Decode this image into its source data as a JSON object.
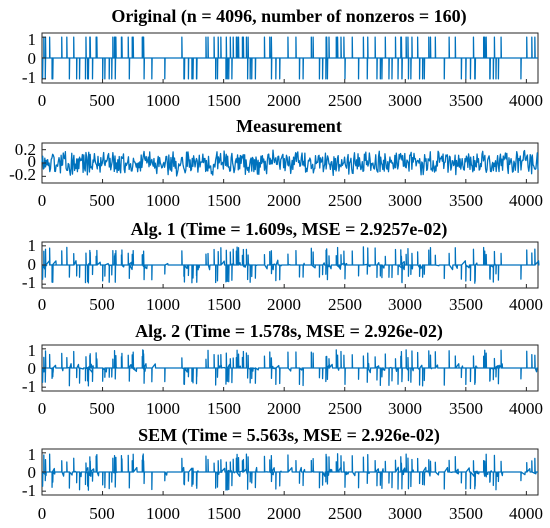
{
  "chart_data": [
    {
      "type": "line",
      "title": "Original (n = 4096, number of nonzeros = 160)",
      "xlim": [
        0,
        4096
      ],
      "ylim": [
        -1.2,
        1.2
      ],
      "xticks": [
        0,
        500,
        1000,
        1500,
        2000,
        2500,
        3000,
        3500,
        4000
      ],
      "xticklabels": [
        "0",
        "500",
        "1000",
        "1500",
        "2000",
        "2500",
        "3000",
        "3500",
        "4000"
      ],
      "yticks": [
        -1,
        0,
        1
      ],
      "yticklabels": [
        "-1",
        "0",
        "1"
      ],
      "series": [
        {
          "kind": "sparse_spikes",
          "n": 4096,
          "nonzeros": 160,
          "amplitude": 1
        }
      ]
    },
    {
      "type": "line",
      "title": "Measurement",
      "xlim": [
        0,
        4096
      ],
      "ylim": [
        -0.3,
        0.3
      ],
      "xticks": [
        0,
        500,
        1000,
        1500,
        2000,
        2500,
        3000,
        3500,
        4000
      ],
      "xticklabels": [
        "0",
        "500",
        "1000",
        "1500",
        "2000",
        "2500",
        "3000",
        "3500",
        "4000"
      ],
      "yticks": [
        -0.2,
        0,
        0.2
      ],
      "yticklabels": [
        "-0.2",
        "0",
        "0.2"
      ],
      "series": [
        {
          "kind": "dense_noise",
          "n": 4096,
          "amplitude": 0.2
        }
      ]
    },
    {
      "type": "line",
      "title": "Alg. 1 (Time = 1.609s, MSE = 2.9257e-02)",
      "xlim": [
        0,
        4096
      ],
      "ylim": [
        -1.2,
        1.2
      ],
      "xticks": [
        0,
        500,
        1000,
        1500,
        2000,
        2500,
        3000,
        3500,
        4000
      ],
      "xticklabels": [
        "0",
        "500",
        "1000",
        "1500",
        "2000",
        "2500",
        "3000",
        "3500",
        "4000"
      ],
      "yticks": [
        -1,
        0,
        1
      ],
      "yticklabels": [
        "-1",
        "0",
        "1"
      ],
      "series": [
        {
          "kind": "sparse_recovery",
          "n": 4096,
          "amplitude": 1
        }
      ]
    },
    {
      "type": "line",
      "title": "Alg. 2 (Time = 1.578s, MSE = 2.926e-02)",
      "xlim": [
        0,
        4096
      ],
      "ylim": [
        -1.2,
        1.2
      ],
      "xticks": [
        0,
        500,
        1000,
        1500,
        2000,
        2500,
        3000,
        3500,
        4000
      ],
      "xticklabels": [
        "0",
        "500",
        "1000",
        "1500",
        "2000",
        "2500",
        "3000",
        "3500",
        "4000"
      ],
      "yticks": [
        -1,
        0,
        1
      ],
      "yticklabels": [
        "-1",
        "0",
        "1"
      ],
      "series": [
        {
          "kind": "sparse_recovery",
          "n": 4096,
          "amplitude": 1
        }
      ]
    },
    {
      "type": "line",
      "title": "SEM (Time = 5.563s, MSE = 2.926e-02)",
      "xlim": [
        0,
        4096
      ],
      "ylim": [
        -1.2,
        1.2
      ],
      "xticks": [
        0,
        500,
        1000,
        1500,
        2000,
        2500,
        3000,
        3500,
        4000
      ],
      "xticklabels": [
        "0",
        "500",
        "1000",
        "1500",
        "2000",
        "2500",
        "3000",
        "3500",
        "4000"
      ],
      "yticks": [
        -1,
        0,
        1
      ],
      "yticklabels": [
        "-1",
        "0",
        "1"
      ],
      "series": [
        {
          "kind": "sparse_recovery",
          "n": 4096,
          "amplitude": 1
        }
      ]
    }
  ],
  "colors": {
    "line": "#0072BD",
    "axes": "#262626"
  }
}
